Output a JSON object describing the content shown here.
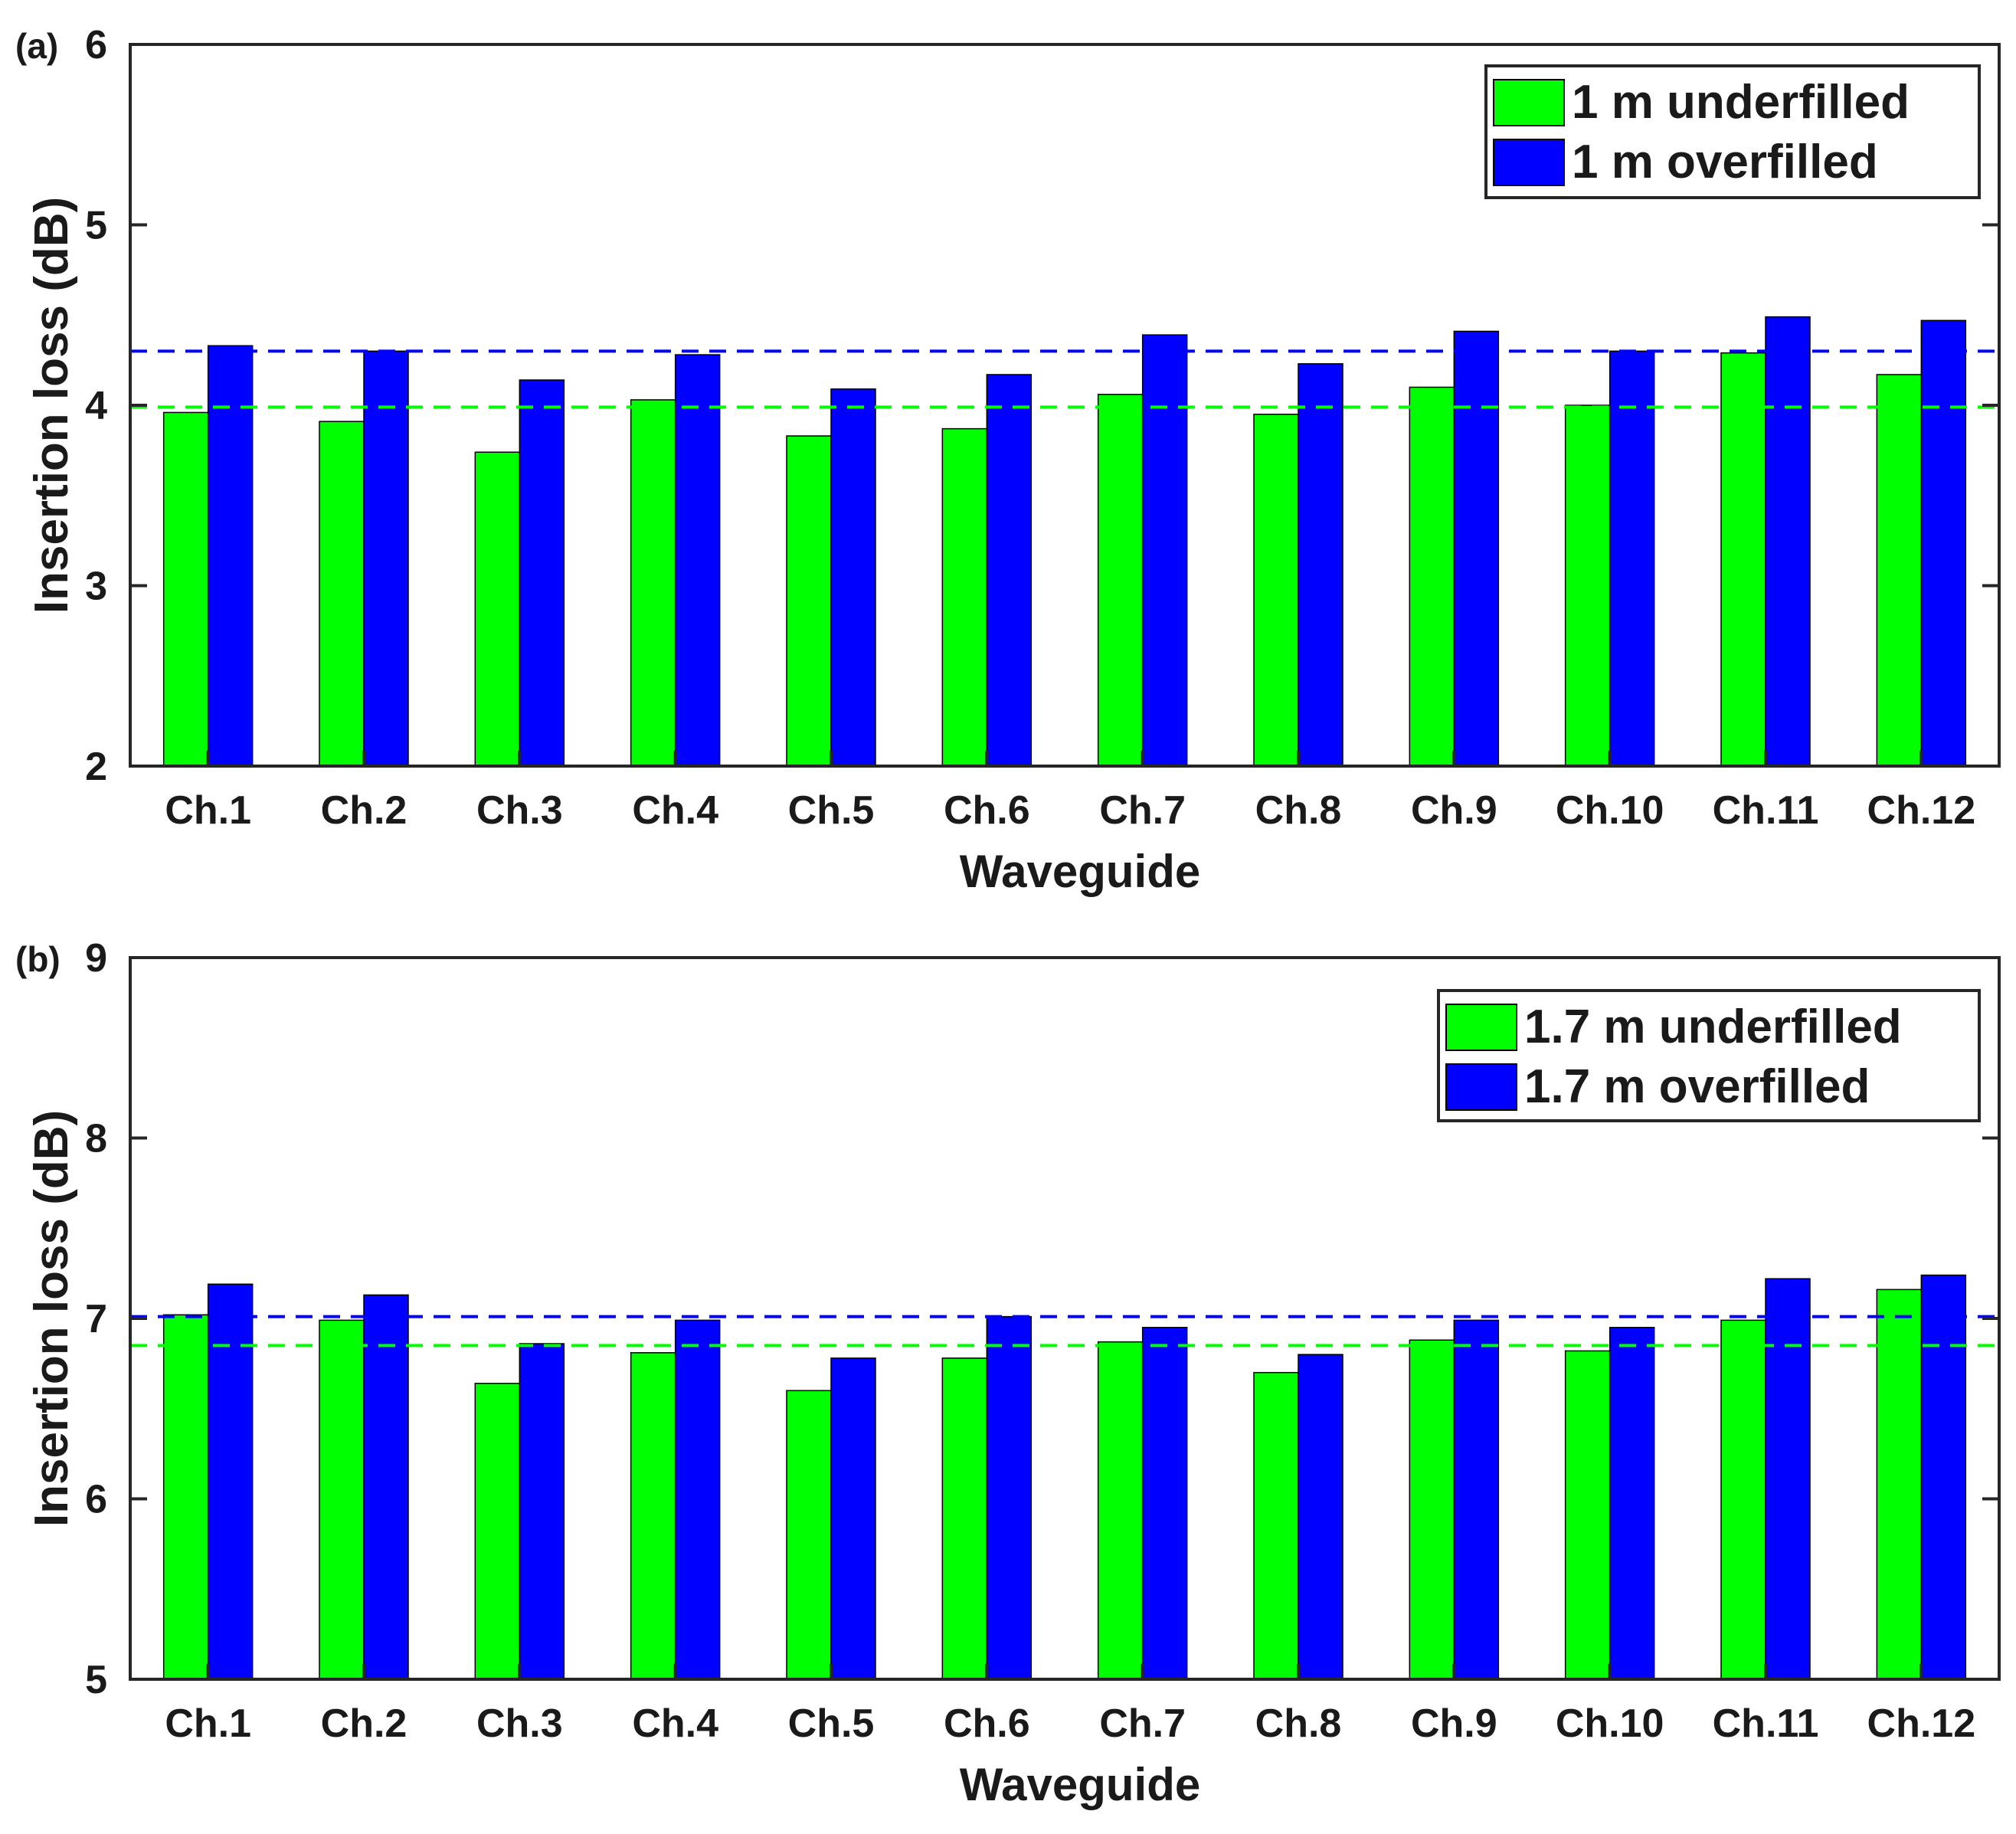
{
  "chart_data": [
    {
      "type": "bar",
      "panel_label": "(a)",
      "categories": [
        "Ch.1",
        "Ch.2",
        "Ch.3",
        "Ch.4",
        "Ch.5",
        "Ch.6",
        "Ch.7",
        "Ch.8",
        "Ch.9",
        "Ch.10",
        "Ch.11",
        "Ch.12"
      ],
      "series": [
        {
          "name": "1 m underfilled",
          "color": "#00ff00",
          "values": [
            3.96,
            3.91,
            3.74,
            4.03,
            3.83,
            3.87,
            4.06,
            3.95,
            4.1,
            4.0,
            4.29,
            4.17
          ]
        },
        {
          "name": "1 m overfilled",
          "color": "#0000ff",
          "values": [
            4.33,
            4.3,
            4.14,
            4.28,
            4.09,
            4.17,
            4.39,
            4.23,
            4.41,
            4.3,
            4.49,
            4.47
          ]
        }
      ],
      "reference_lines": [
        {
          "value": 4.3,
          "color": "#0000ff",
          "style": "dashed"
        },
        {
          "value": 3.99,
          "color": "#00ff00",
          "style": "dashed"
        }
      ],
      "xlabel": "Waveguide",
      "ylabel": "Insertion loss (dB)",
      "ylim": [
        2,
        6
      ],
      "yticks": [
        2,
        3,
        4,
        5,
        6
      ],
      "legend_position": "top-right"
    },
    {
      "type": "bar",
      "panel_label": "(b)",
      "categories": [
        "Ch.1",
        "Ch.2",
        "Ch.3",
        "Ch.4",
        "Ch.5",
        "Ch.6",
        "Ch.7",
        "Ch.8",
        "Ch.9",
        "Ch.10",
        "Ch.11",
        "Ch.12"
      ],
      "series": [
        {
          "name": "1.7 m underfilled",
          "color": "#00ff00",
          "values": [
            7.02,
            6.99,
            6.64,
            6.81,
            6.6,
            6.78,
            6.87,
            6.7,
            6.88,
            6.82,
            6.99,
            7.16
          ]
        },
        {
          "name": "1.7 m overfilled",
          "color": "#0000ff",
          "values": [
            7.19,
            7.13,
            6.86,
            6.99,
            6.78,
            7.01,
            6.95,
            6.8,
            6.99,
            6.95,
            7.22,
            7.24
          ]
        }
      ],
      "reference_lines": [
        {
          "value": 7.01,
          "color": "#0000ff",
          "style": "dashed"
        },
        {
          "value": 6.85,
          "color": "#00ff00",
          "style": "dashed"
        }
      ],
      "xlabel": "Waveguide",
      "ylabel": "Insertion loss (dB)",
      "ylim": [
        5,
        9
      ],
      "yticks": [
        5,
        6,
        7,
        8,
        9
      ],
      "legend_position": "top-right"
    }
  ]
}
